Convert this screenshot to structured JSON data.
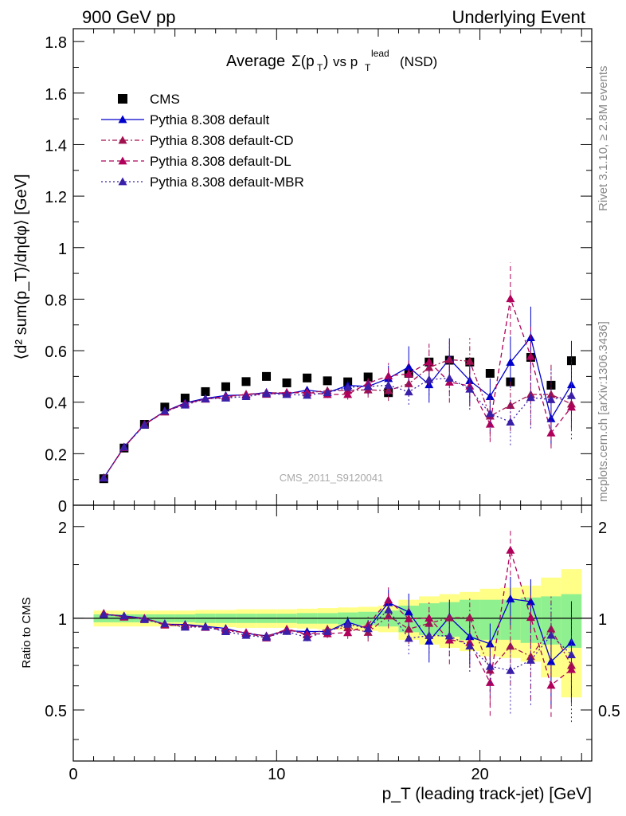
{
  "header": {
    "left": "900 GeV pp",
    "right": "Underlying Event"
  },
  "side_text": {
    "rivet": "Rivet 3.1.10, ≥ 2.8M events",
    "mcplots": "mcplots.cern.ch [arXiv:1306.3436]"
  },
  "watermark": "CMS_2011_S9120041",
  "title": {
    "main": "Average",
    "sigma": "Σ(p",
    "sub_T": "T",
    "close": ")",
    "vs": "vs p",
    "sup_lead": "lead",
    "nsd": "(NSD)"
  },
  "axes": {
    "main_ylabel": "⟨d² sum(p_T)/dηdφ⟩ [GeV]",
    "ratio_ylabel": "Ratio to CMS",
    "xlabel": "p_T (leading track-jet) [GeV]"
  },
  "legend": [
    {
      "label": "CMS",
      "color": "#000000",
      "marker": "square",
      "dash": "none"
    },
    {
      "label": "Pythia 8.308 default",
      "color": "#0000cc",
      "marker": "triangle",
      "dash": "solid"
    },
    {
      "label": "Pythia 8.308 default-CD",
      "color": "#a0124f",
      "marker": "triangle",
      "dash": "dashdot"
    },
    {
      "label": "Pythia 8.308 default-DL",
      "color": "#b0005a",
      "marker": "triangle",
      "dash": "dashed"
    },
    {
      "label": "Pythia 8.308 default-MBR",
      "color": "#3a1fa8",
      "marker": "triangle",
      "dash": "dotted"
    }
  ],
  "chart_data": {
    "type": "scatter",
    "xlim": [
      0,
      25.5
    ],
    "ylim": [
      0,
      1.85
    ],
    "ratio_ylim": [
      0.34,
      2.35
    ],
    "x_ticks": [
      0,
      10,
      20
    ],
    "y_ticks": [
      0,
      0.2,
      0.4,
      0.6,
      0.8,
      1,
      1.2,
      1.4,
      1.6,
      1.8
    ],
    "ratio_ticks": [
      0.5,
      1,
      2
    ],
    "x": [
      1.5,
      2.5,
      3.5,
      4.5,
      5.5,
      6.5,
      7.5,
      8.5,
      9.5,
      10.5,
      11.5,
      12.5,
      13.5,
      14.5,
      15.5,
      16.5,
      17.5,
      18.5,
      19.5,
      20.5,
      21.5,
      22.5,
      23.5,
      24.5
    ],
    "series": [
      {
        "name": "CMS",
        "role": "data",
        "values": [
          0.103,
          0.222,
          0.314,
          0.381,
          0.416,
          0.441,
          0.46,
          0.48,
          0.5,
          0.475,
          0.494,
          0.483,
          0.479,
          0.498,
          0.437,
          0.512,
          0.556,
          0.563,
          0.556,
          0.512,
          0.479,
          0.574,
          0.466,
          0.561
        ]
      },
      {
        "name": "Pythia 8.308 default",
        "values": [
          0.106,
          0.226,
          0.314,
          0.364,
          0.397,
          0.415,
          0.426,
          0.428,
          0.438,
          0.432,
          0.447,
          0.437,
          0.465,
          0.461,
          0.492,
          0.537,
          0.468,
          0.568,
          0.484,
          0.422,
          0.555,
          0.651,
          0.336,
          0.468
        ],
        "errors": [
          0.002,
          0.003,
          0.004,
          0.005,
          0.006,
          0.007,
          0.008,
          0.009,
          0.01,
          0.011,
          0.012,
          0.014,
          0.02,
          0.03,
          0.05,
          0.08,
          0.07,
          0.08,
          0.09,
          0.07,
          0.1,
          0.12,
          0.1,
          0.17
        ]
      },
      {
        "name": "Pythia 8.308 default-CD",
        "values": [
          0.106,
          0.225,
          0.313,
          0.362,
          0.393,
          0.413,
          0.418,
          0.431,
          0.436,
          0.437,
          0.436,
          0.445,
          0.446,
          0.448,
          0.445,
          0.472,
          0.535,
          0.565,
          0.559,
          0.346,
          0.388,
          0.43,
          0.43,
          0.393
        ],
        "errors": [
          0.002,
          0.003,
          0.004,
          0.005,
          0.006,
          0.007,
          0.008,
          0.009,
          0.01,
          0.011,
          0.012,
          0.014,
          0.02,
          0.03,
          0.04,
          0.05,
          0.07,
          0.07,
          0.09,
          0.08,
          0.1,
          0.12,
          0.12,
          0.1
        ]
      },
      {
        "name": "Pythia 8.308 default-DL",
        "values": [
          0.107,
          0.224,
          0.314,
          0.365,
          0.394,
          0.412,
          0.422,
          0.43,
          0.431,
          0.438,
          0.438,
          0.43,
          0.43,
          0.474,
          0.502,
          0.51,
          0.557,
          0.478,
          0.463,
          0.315,
          0.802,
          0.578,
          0.281,
          0.381
        ],
        "errors": [
          0.002,
          0.003,
          0.004,
          0.005,
          0.006,
          0.007,
          0.008,
          0.009,
          0.01,
          0.011,
          0.012,
          0.014,
          0.02,
          0.03,
          0.05,
          0.06,
          0.07,
          0.08,
          0.08,
          0.07,
          0.14,
          0.12,
          0.06,
          0.08
        ]
      },
      {
        "name": "Pythia 8.308 default-MBR",
        "values": [
          0.106,
          0.226,
          0.311,
          0.366,
          0.389,
          0.413,
          0.416,
          0.422,
          0.433,
          0.43,
          0.427,
          0.437,
          0.458,
          0.461,
          0.466,
          0.44,
          0.488,
          0.493,
          0.451,
          0.356,
          0.323,
          0.418,
          0.41,
          0.426
        ],
        "errors": [
          0.002,
          0.003,
          0.004,
          0.005,
          0.006,
          0.007,
          0.008,
          0.009,
          0.01,
          0.011,
          0.012,
          0.014,
          0.02,
          0.03,
          0.04,
          0.05,
          0.06,
          0.07,
          0.08,
          0.07,
          0.09,
          0.12,
          0.12,
          0.17
        ]
      }
    ],
    "band_inner": [
      0.03,
      0.03,
      0.03,
      0.03,
      0.03,
      0.035,
      0.035,
      0.035,
      0.035,
      0.035,
      0.04,
      0.04,
      0.045,
      0.05,
      0.06,
      0.1,
      0.12,
      0.13,
      0.15,
      0.15,
      0.15,
      0.17,
      0.18,
      0.2
    ],
    "band_outer": [
      0.06,
      0.06,
      0.06,
      0.06,
      0.06,
      0.065,
      0.065,
      0.07,
      0.07,
      0.07,
      0.075,
      0.08,
      0.085,
      0.09,
      0.1,
      0.15,
      0.18,
      0.2,
      0.22,
      0.25,
      0.26,
      0.28,
      0.36,
      0.45
    ]
  }
}
